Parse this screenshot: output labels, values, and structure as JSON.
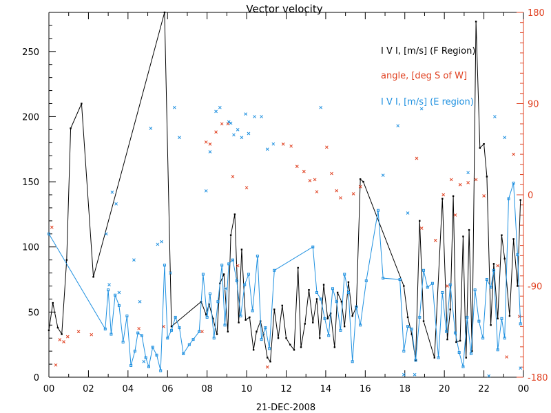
{
  "chart_data": {
    "type": "line",
    "title": "Vector velocity",
    "xlabel": "21-DEC-2008",
    "x_ticks": [
      "00",
      "02",
      "04",
      "06",
      "08",
      "10",
      "12",
      "14",
      "16",
      "18",
      "20",
      "22",
      "00"
    ],
    "xlim": [
      0,
      24
    ],
    "ylim_left": [
      0,
      280
    ],
    "yticks_left": [
      "0",
      "50",
      "100",
      "150",
      "200",
      "250"
    ],
    "ylim_right": [
      -180,
      180
    ],
    "yticks_right": [
      "-180",
      "-90",
      "0",
      "90",
      "180"
    ],
    "legend_position": "top-right",
    "colors": {
      "black": "#000000",
      "red": "#e04020",
      "blue": "#1e90e0"
    },
    "series": [
      {
        "name": "I V I, [m/s] (F Region)",
        "axis": "left",
        "style": "line-diamond",
        "color": "#000000",
        "x": [
          0.0,
          0.2,
          0.45,
          0.65,
          0.9,
          1.1,
          1.65,
          2.25,
          5.85,
          6.2,
          7.7,
          7.95,
          8.1,
          8.3,
          8.5,
          8.65,
          8.85,
          9.05,
          9.2,
          9.4,
          9.6,
          9.75,
          9.95,
          10.15,
          10.35,
          10.5,
          10.7,
          10.85,
          11.05,
          11.2,
          11.4,
          11.6,
          11.8,
          12.0,
          12.2,
          12.4,
          12.6,
          12.75,
          12.95,
          13.15,
          13.35,
          13.55,
          13.7,
          13.9,
          14.1,
          14.25,
          14.45,
          14.6,
          14.8,
          14.95,
          15.15,
          15.35,
          15.55,
          15.75,
          15.9,
          17.95,
          18.15,
          18.35,
          18.55,
          18.75,
          18.95,
          19.5,
          19.9,
          20.15,
          20.3,
          20.45,
          20.6,
          20.8,
          20.95,
          21.1,
          21.25,
          21.4,
          21.6,
          21.8,
          22.0,
          22.15,
          22.35,
          22.5,
          22.7,
          22.9,
          23.05,
          23.3,
          23.5,
          23.7,
          23.85
        ],
        "values": [
          36,
          57,
          38,
          33,
          90,
          191,
          210,
          77,
          280,
          39,
          58,
          48,
          56,
          45,
          33,
          72,
          79,
          35,
          109,
          125,
          42,
          98,
          44,
          46,
          21,
          35,
          43,
          33,
          15,
          12,
          52,
          30,
          55,
          30,
          25,
          21,
          84,
          23,
          41,
          67,
          42,
          60,
          30,
          71,
          45,
          49,
          23,
          65,
          58,
          39,
          73,
          47,
          54,
          152,
          150,
          70,
          46,
          33,
          13,
          120,
          43,
          15,
          137,
          29,
          52,
          139,
          27,
          28,
          108,
          15,
          113,
          20,
          273,
          176,
          179,
          154,
          40,
          87,
          45,
          109,
          91,
          47,
          106,
          70,
          136
        ]
      },
      {
        "name": "angle, [deg S of W]",
        "axis": "right",
        "style": "cross",
        "color": "#e04020",
        "x": [
          0.15,
          0.35,
          0.55,
          0.75,
          0.95,
          1.5,
          2.15,
          4.55,
          5.8,
          7.75,
          7.95,
          8.15,
          8.45,
          8.75,
          9.05,
          9.3,
          9.55,
          10.0,
          11.05,
          11.85,
          12.25,
          12.55,
          12.9,
          13.2,
          13.45,
          13.55,
          14.05,
          14.3,
          14.55,
          14.75,
          15.4,
          15.75,
          18.6,
          18.85,
          19.55,
          19.95,
          20.15,
          20.35,
          20.55,
          20.8,
          21.2,
          21.6,
          22.0,
          22.7,
          23.15,
          23.5,
          23.8
        ],
        "values": [
          -32,
          -168,
          -143,
          -145,
          -140,
          -135,
          -138,
          -132,
          -130,
          -135,
          52,
          50,
          62,
          70,
          70,
          18,
          -70,
          7,
          -170,
          50,
          48,
          28,
          23,
          14,
          15,
          3,
          47,
          21,
          4,
          -3,
          1,
          8,
          36,
          -33,
          -45,
          0,
          -90,
          15,
          -20,
          10,
          12,
          15,
          -1,
          -70,
          -160,
          40,
          -120
        ]
      },
      {
        "name": "I V I, [m/s] (E region)",
        "axis": "left",
        "style": "line-square",
        "color": "#1e90e0",
        "x": [
          0.0,
          2.85,
          3.0,
          3.15,
          3.35,
          3.55,
          3.75,
          3.95,
          4.15,
          4.35,
          4.5,
          4.7,
          4.9,
          5.05,
          5.25,
          5.45,
          5.65,
          5.85,
          6.0,
          6.2,
          6.4,
          6.6,
          6.8,
          7.1,
          7.3,
          7.6,
          7.8,
          8.0,
          8.15,
          8.35,
          8.55,
          8.75,
          8.9,
          9.1,
          9.3,
          9.5,
          9.7,
          9.9,
          10.1,
          10.3,
          10.55,
          10.75,
          10.95,
          11.15,
          11.4,
          13.35,
          13.55,
          13.75,
          13.95,
          14.15,
          14.35,
          14.55,
          14.75,
          14.95,
          15.15,
          15.35,
          15.55,
          15.75,
          16.05,
          16.65,
          16.9,
          17.75,
          17.95,
          18.15,
          18.35,
          18.55,
          18.75,
          18.95,
          19.15,
          19.4,
          19.7,
          19.9,
          20.1,
          20.3,
          20.55,
          20.75,
          20.95,
          21.15,
          21.35,
          21.55,
          21.75,
          21.95,
          22.15,
          22.35,
          22.5,
          22.7,
          22.9,
          23.05,
          23.25,
          23.5,
          23.7,
          23.85
        ],
        "values": [
          110,
          37,
          67,
          33,
          63,
          55,
          27,
          47,
          9,
          20,
          34,
          32,
          15,
          8,
          23,
          17,
          5,
          86,
          30,
          36,
          46,
          38,
          18,
          25,
          29,
          35,
          79,
          46,
          64,
          30,
          58,
          86,
          40,
          87,
          90,
          74,
          47,
          71,
          79,
          51,
          93,
          29,
          38,
          22,
          82,
          100,
          65,
          60,
          45,
          32,
          68,
          58,
          36,
          79,
          65,
          12,
          54,
          40,
          74,
          128,
          76,
          75,
          20,
          39,
          37,
          13,
          46,
          82,
          69,
          72,
          15,
          65,
          35,
          71,
          34,
          19,
          8,
          46,
          18,
          67,
          43,
          30,
          75,
          69,
          82,
          21,
          45,
          30,
          137,
          149,
          94,
          41
        ]
      },
      {
        "name": "",
        "axis": "left",
        "style": "cross",
        "color": "#1e90e0",
        "x": [
          2.9,
          3.05,
          3.2,
          3.4,
          3.55,
          4.3,
          4.6,
          4.8,
          5.15,
          5.5,
          5.7,
          6.15,
          6.35,
          6.6,
          7.95,
          8.15,
          8.45,
          8.65,
          8.95,
          9.1,
          9.2,
          9.35,
          9.55,
          9.75,
          9.95,
          10.1,
          10.4,
          10.75,
          11.05,
          11.35,
          13.75,
          16.9,
          17.65,
          17.95,
          18.15,
          18.5,
          18.85,
          21.2,
          22.25,
          22.55,
          23.05,
          23.85
        ],
        "values": [
          110,
          71,
          142,
          133,
          65,
          90,
          58,
          12,
          191,
          102,
          104,
          80,
          207,
          184,
          143,
          173,
          204,
          207,
          68,
          196,
          195,
          186,
          190,
          184,
          202,
          187,
          200,
          200,
          175,
          179,
          207,
          155,
          193,
          2,
          126,
          2,
          206,
          157,
          1,
          200,
          184,
          7
        ]
      }
    ]
  }
}
